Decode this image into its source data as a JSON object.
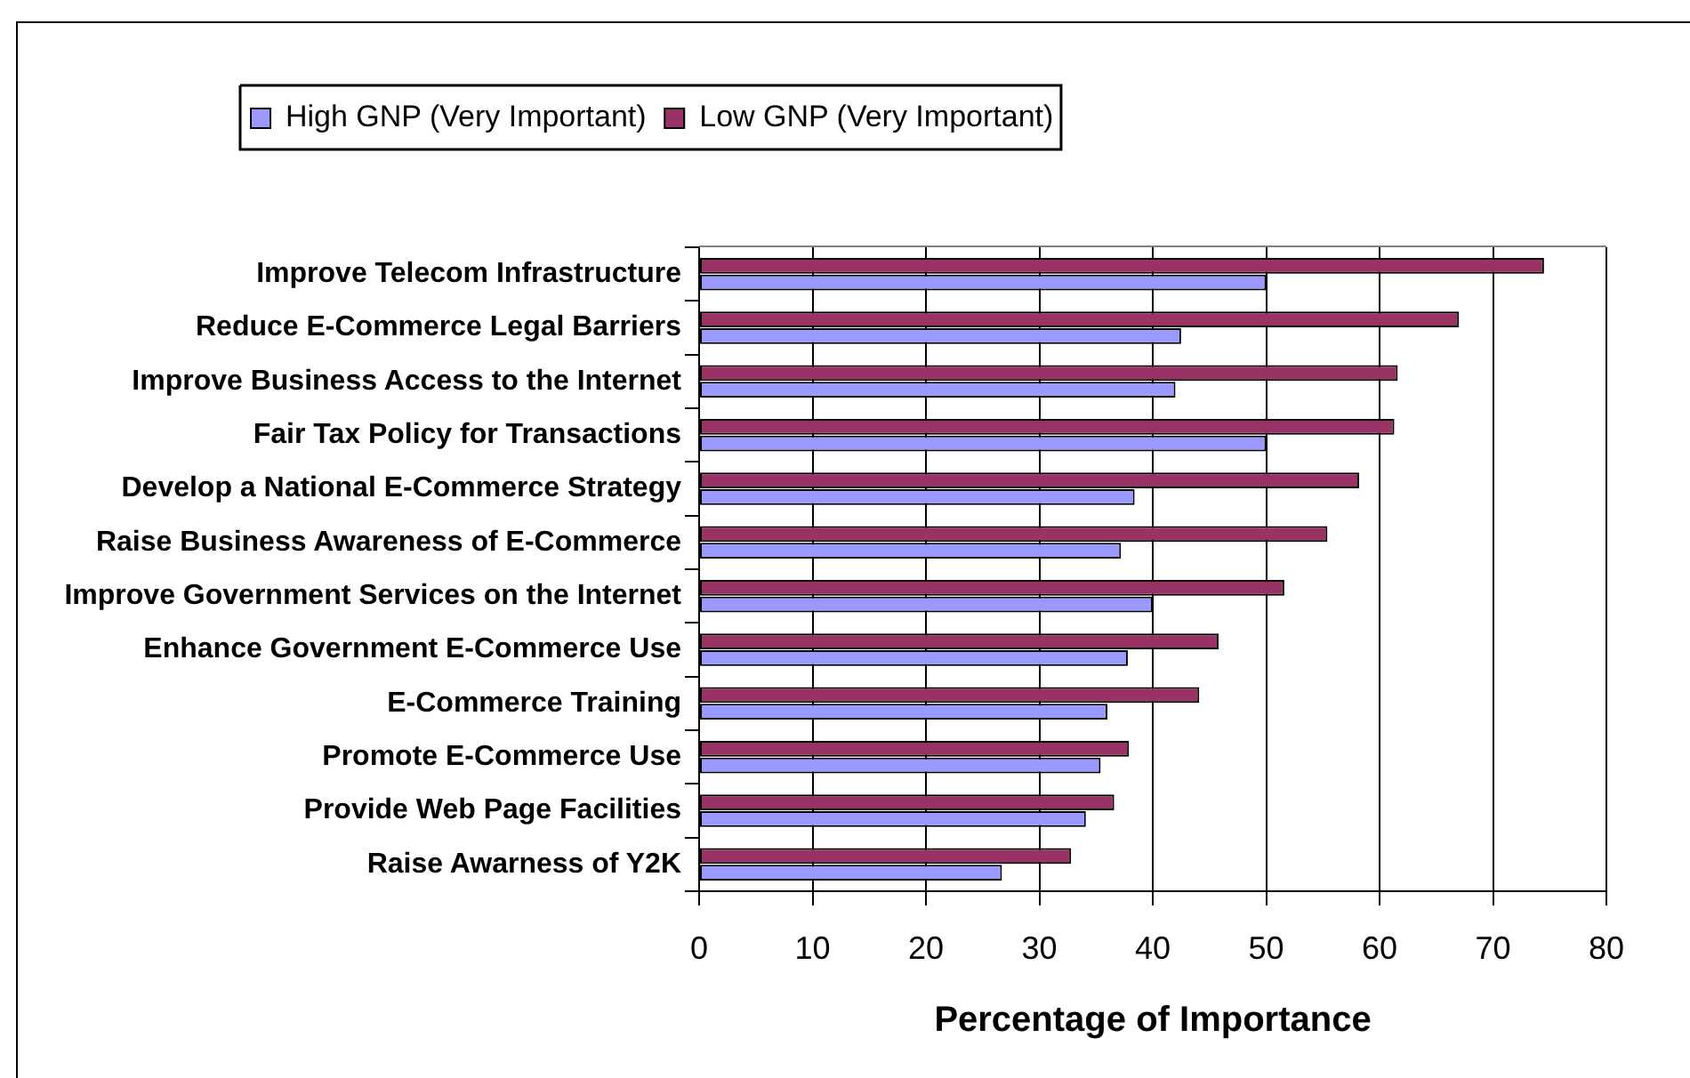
{
  "chart_data": {
    "type": "bar",
    "orientation": "horizontal",
    "legend": "top left",
    "grid": "x",
    "xlabel": "Percentage of Importance",
    "xlim": [
      0,
      80
    ],
    "xticks": [
      0,
      10,
      20,
      30,
      40,
      50,
      60,
      70,
      80
    ],
    "categories": [
      "Improve Telecom Infrastructure",
      "Reduce E-Commerce Legal Barriers",
      "Improve Business Access to the Internet",
      "Fair Tax Policy for Transactions",
      "Develop a National E-Commerce Strategy",
      "Raise Business Awareness of E-Commerce",
      "Improve Government Services on the Internet",
      "Enhance Government E-Commerce Use",
      "E-Commerce Training",
      "Promote E-Commerce Use",
      "Provide Web Page Facilities",
      "Raise Awarness of Y2K"
    ],
    "series": [
      {
        "name": "High GNP (Very Important)",
        "color": "#9999ff",
        "values": [
          50,
          42.5,
          42,
          50,
          38.4,
          37.2,
          40,
          37.8,
          36,
          35.4,
          34.1,
          26.7
        ]
      },
      {
        "name": "Low GNP (Very Important)",
        "color": "#993366",
        "values": [
          74.5,
          67,
          61.6,
          61.3,
          58.2,
          55.4,
          51.6,
          45.8,
          44.1,
          37.9,
          36.6,
          32.8
        ]
      }
    ]
  }
}
